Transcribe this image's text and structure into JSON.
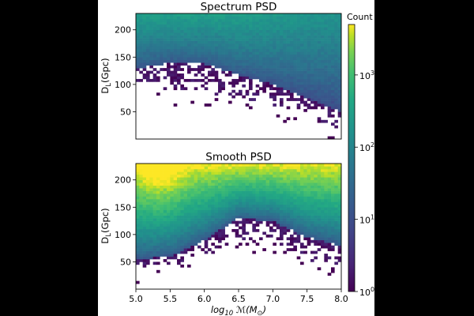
{
  "chart_data": [
    {
      "type": "heatmap",
      "title": "Spectrum PSD",
      "ylabel": "D_L(Gpc)",
      "xlabel": "",
      "xlim": [
        5.0,
        8.0
      ],
      "ylim": [
        0,
        230
      ],
      "yticks": [
        50,
        100,
        150,
        200
      ],
      "xticks": [],
      "log_color_scale": true,
      "grid": false,
      "lower_boundary": [
        {
          "x": 5.0,
          "y": 100
        },
        {
          "x": 5.5,
          "y": 85
        },
        {
          "x": 6.0,
          "y": 85
        },
        {
          "x": 6.5,
          "y": 75
        },
        {
          "x": 7.0,
          "y": 62
        },
        {
          "x": 7.5,
          "y": 40
        },
        {
          "x": 8.0,
          "y": 18
        }
      ],
      "dense_boundary": [
        {
          "x": 5.0,
          "y": 130
        },
        {
          "x": 5.5,
          "y": 140
        },
        {
          "x": 6.0,
          "y": 138
        },
        {
          "x": 6.5,
          "y": 118
        },
        {
          "x": 7.0,
          "y": 100
        },
        {
          "x": 7.5,
          "y": 75
        },
        {
          "x": 8.0,
          "y": 50
        }
      ],
      "peak_count": 300
    },
    {
      "type": "heatmap",
      "title": "Smooth PSD",
      "ylabel": "D_L(Gpc)",
      "xlabel": "log_10 M(M_sun)",
      "xlim": [
        5.0,
        8.0
      ],
      "ylim": [
        0,
        230
      ],
      "yticks": [
        50,
        100,
        150,
        200
      ],
      "xticks": [
        "5.0",
        "5.5",
        "6.0",
        "6.5",
        "7.0",
        "7.5",
        "8.0"
      ],
      "log_color_scale": true,
      "grid": false,
      "lower_boundary": [
        {
          "x": 5.0,
          "y": 35
        },
        {
          "x": 5.5,
          "y": 40
        },
        {
          "x": 6.0,
          "y": 60
        },
        {
          "x": 6.5,
          "y": 88
        },
        {
          "x": 7.0,
          "y": 85
        },
        {
          "x": 7.5,
          "y": 55
        },
        {
          "x": 8.0,
          "y": 38
        }
      ],
      "dense_boundary": [
        {
          "x": 5.0,
          "y": 55
        },
        {
          "x": 5.5,
          "y": 60
        },
        {
          "x": 6.0,
          "y": 90
        },
        {
          "x": 6.5,
          "y": 130
        },
        {
          "x": 7.0,
          "y": 125
        },
        {
          "x": 7.5,
          "y": 95
        },
        {
          "x": 8.0,
          "y": 80
        }
      ],
      "peak_count": 5000
    }
  ],
  "colorbar": {
    "label": "Count",
    "scale": "log",
    "range": [
      1,
      5000
    ],
    "ticks": [
      {
        "value": 1,
        "base": "10",
        "exp": "0"
      },
      {
        "value": 10,
        "base": "10",
        "exp": "1"
      },
      {
        "value": 100,
        "base": "10",
        "exp": "2"
      },
      {
        "value": 1000,
        "base": "10",
        "exp": "3"
      }
    ]
  },
  "axis_text": {
    "ylabel_main": "D",
    "ylabel_sub": "L",
    "ylabel_rest": "(Gpc)",
    "xlabel_pre": "log",
    "xlabel_sub": "10",
    "xlabel_rest": " ℳ(M",
    "xlabel_sun": "⊙",
    "xlabel_close": ")"
  },
  "colors": {
    "background_outer": "#000000",
    "figure_bg": "#ffffff",
    "colormap": "viridis"
  }
}
